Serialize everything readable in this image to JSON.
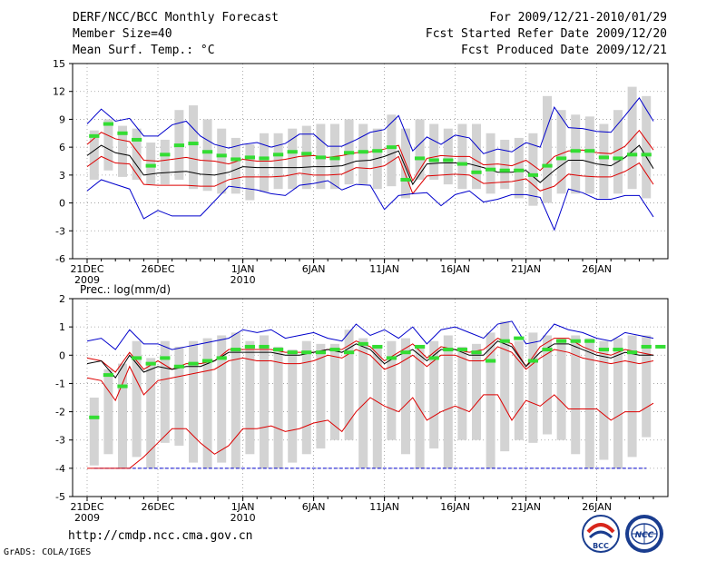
{
  "header": {
    "title": "DERF/NCC/BCC Monthly Forecast",
    "member_size": "Member Size=40",
    "variable": "Mean Surf. Temp.: °C",
    "period": "For 2009/12/21-2010/01/29",
    "start_date": "Fcst Started Refer Date 2009/12/20",
    "produced_date": "Fcst Produced Date 2009/12/21"
  },
  "footer": {
    "url": "http://cmdp.ncc.cma.gov.cn",
    "credit": "GrADS: COLA/IGES",
    "logo_bcc": "BCC",
    "logo_ncc": "NCC"
  },
  "colors": {
    "box": "#d3d3d3",
    "ensemble_mean": "#000000",
    "spread": "#dd0000",
    "extremes": "#0000cc",
    "median": "#33dd33",
    "zero_line": "#0000cc"
  },
  "chart_data": [
    {
      "type": "line",
      "title": "Mean Surf. Temp.: °C",
      "xlabel": "",
      "ylabel": "",
      "ylim": [
        -6,
        15
      ],
      "yticks": [
        -6,
        -3,
        0,
        3,
        6,
        9,
        12,
        15
      ],
      "xtick_labels": [
        {
          "day": 0,
          "label": "21DEC",
          "sub": "2009"
        },
        {
          "day": 5,
          "label": "26DEC",
          "sub": ""
        },
        {
          "day": 11,
          "label": "1JAN",
          "sub": "2010"
        },
        {
          "day": 16,
          "label": "6JAN",
          "sub": ""
        },
        {
          "day": 21,
          "label": "11JAN",
          "sub": ""
        },
        {
          "day": 26,
          "label": "16JAN",
          "sub": ""
        },
        {
          "day": 31,
          "label": "21JAN",
          "sub": ""
        },
        {
          "day": 36,
          "label": "26JAN",
          "sub": ""
        }
      ],
      "days": 40,
      "box_low": [
        2.5,
        3.5,
        2.8,
        2.5,
        2.0,
        2.0,
        2.5,
        1.5,
        1.3,
        1.0,
        1.0,
        0.3,
        1.2,
        1.5,
        1.5,
        1.5,
        1.5,
        1.5,
        2.0,
        2.0,
        1.5,
        1.8,
        0.5,
        2.5,
        2.5,
        2.0,
        1.5,
        1.5,
        1.0,
        1.5,
        0.5,
        -0.3,
        0.0,
        1.0,
        1.0,
        1.0,
        0.5,
        1.0,
        1.5,
        0.5
      ],
      "box_high": [
        7.8,
        9.0,
        8.3,
        8.0,
        6.5,
        6.8,
        10.0,
        10.5,
        9.0,
        8.0,
        7.0,
        6.3,
        7.5,
        7.5,
        8.0,
        8.3,
        8.5,
        8.5,
        9.0,
        8.5,
        8.0,
        9.5,
        8.0,
        9.0,
        8.5,
        8.0,
        8.5,
        8.5,
        7.5,
        6.8,
        7.0,
        7.5,
        11.5,
        10.0,
        9.5,
        9.3,
        8.5,
        10.0,
        12.5,
        11.5
      ],
      "series": [
        {
          "name": "max",
          "color_key": "extremes",
          "values": [
            8.5,
            10.1,
            8.8,
            9.1,
            7.2,
            7.2,
            8.4,
            8.8,
            7.2,
            6.3,
            5.9,
            6.3,
            6.5,
            6.0,
            6.4,
            7.4,
            7.4,
            6.1,
            6.1,
            6.8,
            7.6,
            7.9,
            9.4,
            5.6,
            7.1,
            6.3,
            7.3,
            7.0,
            5.3,
            5.8,
            5.5,
            6.5,
            6.0,
            10.3,
            8.1,
            8.0,
            7.7,
            7.6,
            9.4,
            11.3,
            8.8
          ]
        },
        {
          "name": "upper",
          "color_key": "spread",
          "values": [
            6.3,
            7.6,
            6.9,
            6.6,
            4.6,
            4.5,
            4.7,
            4.9,
            4.6,
            4.5,
            4.2,
            4.7,
            4.5,
            4.5,
            4.7,
            5.0,
            5.1,
            4.9,
            5.1,
            5.4,
            5.5,
            5.8,
            6.2,
            2.4,
            4.8,
            5.1,
            5.0,
            5.0,
            4.1,
            4.2,
            4.0,
            4.6,
            3.5,
            5.0,
            5.6,
            5.7,
            5.4,
            5.3,
            6.1,
            7.8,
            5.7
          ]
        },
        {
          "name": "mean",
          "color_key": "ensemble_mean",
          "values": [
            5.1,
            6.2,
            5.4,
            5.1,
            3.0,
            3.2,
            3.3,
            3.4,
            3.1,
            3.0,
            3.3,
            3.9,
            3.8,
            3.8,
            3.8,
            3.8,
            3.9,
            3.9,
            4.0,
            4.5,
            4.6,
            5.0,
            5.6,
            2.0,
            4.2,
            4.3,
            4.3,
            4.2,
            3.8,
            3.3,
            3.3,
            3.5,
            2.2,
            3.5,
            4.6,
            4.6,
            4.2,
            4.0,
            4.9,
            6.2,
            3.7
          ]
        },
        {
          "name": "lower",
          "color_key": "spread",
          "values": [
            3.9,
            5.0,
            4.3,
            4.2,
            2.0,
            1.9,
            1.9,
            1.9,
            1.8,
            1.8,
            2.5,
            2.8,
            2.8,
            2.8,
            2.9,
            3.2,
            3.0,
            3.0,
            3.1,
            3.8,
            3.7,
            4.0,
            5.0,
            1.0,
            2.9,
            3.0,
            3.1,
            3.0,
            2.1,
            2.2,
            2.3,
            2.6,
            1.3,
            1.8,
            3.1,
            2.9,
            2.8,
            2.8,
            3.4,
            4.3,
            2.0
          ]
        },
        {
          "name": "min",
          "color_key": "extremes",
          "values": [
            1.3,
            2.5,
            2.0,
            1.5,
            -1.7,
            -0.8,
            -1.4,
            -1.4,
            -1.4,
            0.2,
            1.8,
            1.6,
            1.4,
            1.0,
            0.8,
            1.9,
            2.1,
            2.4,
            1.4,
            2.0,
            1.9,
            -0.7,
            0.8,
            1.0,
            1.1,
            -0.3,
            0.9,
            1.3,
            0.1,
            0.4,
            0.9,
            0.9,
            0.6,
            -2.9,
            1.5,
            1.1,
            0.4,
            0.4,
            0.8,
            0.8,
            -1.5
          ]
        }
      ],
      "median": [
        7.2,
        8.5,
        7.5,
        6.8,
        4.0,
        5.2,
        6.2,
        6.4,
        5.5,
        5.1,
        4.7,
        4.9,
        4.8,
        5.2,
        5.5,
        5.3,
        4.9,
        4.8,
        5.4,
        5.5,
        5.6,
        6.0,
        2.5,
        4.8,
        4.6,
        4.6,
        4.2,
        3.3,
        3.6,
        3.5,
        3.5,
        3.0,
        4.0,
        4.8,
        5.6,
        5.6,
        4.9,
        4.8,
        5.2,
        5.2
      ]
    },
    {
      "type": "line",
      "title": "Prec.: log(mm/d)",
      "xlabel": "",
      "ylabel": "",
      "ylim": [
        -5,
        2
      ],
      "yticks": [
        -5,
        -4,
        -3,
        -2,
        -1,
        0,
        1,
        2
      ],
      "xtick_labels": [
        {
          "day": 0,
          "label": "21DEC",
          "sub": "2009"
        },
        {
          "day": 5,
          "label": "26DEC",
          "sub": ""
        },
        {
          "day": 11,
          "label": "1JAN",
          "sub": "2010"
        },
        {
          "day": 16,
          "label": "6JAN",
          "sub": ""
        },
        {
          "day": 21,
          "label": "11JAN",
          "sub": ""
        },
        {
          "day": 26,
          "label": "16JAN",
          "sub": ""
        },
        {
          "day": 31,
          "label": "21JAN",
          "sub": ""
        },
        {
          "day": 36,
          "label": "26JAN",
          "sub": ""
        }
      ],
      "days": 40,
      "zero_line_value": -4,
      "box_low": [
        -3.9,
        -3.5,
        -4.0,
        -3.6,
        -4.0,
        -3.1,
        -3.2,
        -3.8,
        -4.0,
        -3.8,
        -4.0,
        -3.5,
        -4.0,
        -4.0,
        -3.8,
        -3.5,
        -3.3,
        -3.0,
        -3.0,
        -4.0,
        -4.0,
        -3.0,
        -3.5,
        -4.0,
        -3.3,
        -4.0,
        -3.0,
        -3.0,
        -4.0,
        -3.4,
        -3.0,
        -3.1,
        -2.8,
        -3.0,
        -3.5,
        -4.0,
        -3.7,
        -4.0,
        -3.6,
        -2.9
      ],
      "box_high": [
        -1.5,
        -0.5,
        -0.3,
        0.5,
        -0.1,
        0.5,
        0.3,
        0.5,
        0.6,
        0.7,
        0.8,
        0.5,
        0.7,
        0.3,
        0.2,
        0.5,
        0.4,
        0.4,
        0.9,
        0.6,
        0.3,
        0.5,
        0.6,
        0.3,
        0.5,
        0.7,
        0.3,
        0.4,
        0.8,
        1.2,
        0.5,
        0.8,
        0.7,
        0.6,
        0.7,
        0.6,
        0.5,
        0.6,
        0.7,
        0.7
      ],
      "series": [
        {
          "name": "max",
          "color_key": "extremes",
          "values": [
            0.5,
            0.6,
            0.2,
            0.9,
            0.4,
            0.4,
            0.2,
            0.3,
            0.4,
            0.5,
            0.6,
            0.9,
            0.8,
            0.9,
            0.6,
            0.7,
            0.8,
            0.6,
            0.5,
            1.1,
            0.7,
            0.9,
            0.6,
            1.0,
            0.4,
            0.9,
            1.0,
            0.8,
            0.6,
            1.1,
            1.2,
            0.4,
            0.5,
            1.1,
            0.9,
            0.8,
            0.6,
            0.5,
            0.8,
            0.7,
            0.6
          ]
        },
        {
          "name": "upper",
          "color_key": "spread",
          "values": [
            -0.1,
            -0.2,
            -0.6,
            0.1,
            -0.5,
            -0.2,
            -0.5,
            -0.3,
            -0.3,
            -0.2,
            0.2,
            0.2,
            0.2,
            0.2,
            0.1,
            0.1,
            0.1,
            0.2,
            0.2,
            0.5,
            0.3,
            -0.2,
            0.1,
            0.4,
            -0.1,
            0.3,
            0.2,
            0.1,
            0.2,
            0.6,
            0.4,
            -0.4,
            0.3,
            0.6,
            0.6,
            0.3,
            0.1,
            0.0,
            0.2,
            0.1,
            0.0
          ]
        },
        {
          "name": "mean",
          "color_key": "ensemble_mean",
          "values": [
            -0.3,
            -0.2,
            -0.8,
            0.0,
            -0.6,
            -0.4,
            -0.5,
            -0.4,
            -0.4,
            -0.2,
            0.1,
            0.1,
            0.1,
            0.1,
            0.0,
            0.0,
            0.1,
            0.2,
            0.1,
            0.4,
            0.2,
            -0.3,
            0.0,
            0.2,
            -0.2,
            0.2,
            0.2,
            0.0,
            0.0,
            0.5,
            0.3,
            -0.4,
            0.1,
            0.4,
            0.4,
            0.2,
            0.0,
            -0.1,
            0.1,
            0.0,
            0.0
          ]
        },
        {
          "name": "lower",
          "color_key": "spread",
          "values": [
            -0.8,
            -0.9,
            -1.6,
            -0.4,
            -1.4,
            -0.9,
            -0.8,
            -0.7,
            -0.6,
            -0.5,
            -0.2,
            -0.1,
            -0.2,
            -0.2,
            -0.3,
            -0.3,
            -0.2,
            0.0,
            -0.1,
            0.2,
            0.0,
            -0.5,
            -0.3,
            0.0,
            -0.4,
            0.0,
            0.0,
            -0.2,
            -0.2,
            0.3,
            0.1,
            -0.5,
            -0.1,
            0.2,
            0.1,
            -0.1,
            -0.2,
            -0.3,
            -0.2,
            -0.3,
            -0.2
          ]
        },
        {
          "name": "min",
          "color_key": "spread",
          "values": [
            -4.0,
            -4.0,
            -4.0,
            -4.0,
            -3.6,
            -3.1,
            -2.6,
            -2.6,
            -3.1,
            -3.5,
            -3.2,
            -2.6,
            -2.6,
            -2.5,
            -2.7,
            -2.6,
            -2.4,
            -2.3,
            -2.7,
            -2.0,
            -1.5,
            -1.8,
            -2.0,
            -1.5,
            -2.3,
            -2.0,
            -1.8,
            -2.0,
            -1.4,
            -1.4,
            -2.3,
            -1.6,
            -1.8,
            -1.4,
            -1.9,
            -1.9,
            -1.9,
            -2.3,
            -2.0,
            -2.0,
            -1.7
          ]
        }
      ],
      "median": [
        -2.2,
        -0.7,
        -1.1,
        -0.1,
        -0.3,
        -0.1,
        -0.4,
        -0.3,
        -0.2,
        -0.1,
        0.2,
        0.3,
        0.3,
        0.2,
        0.1,
        0.1,
        0.1,
        0.2,
        0.1,
        0.4,
        0.3,
        -0.1,
        0.1,
        0.3,
        -0.1,
        0.2,
        0.2,
        0.1,
        -0.2,
        0.5,
        0.6,
        -0.2,
        0.2,
        0.5,
        0.5,
        0.5,
        0.2,
        0.2,
        0.1,
        0.3,
        0.3
      ]
    }
  ]
}
